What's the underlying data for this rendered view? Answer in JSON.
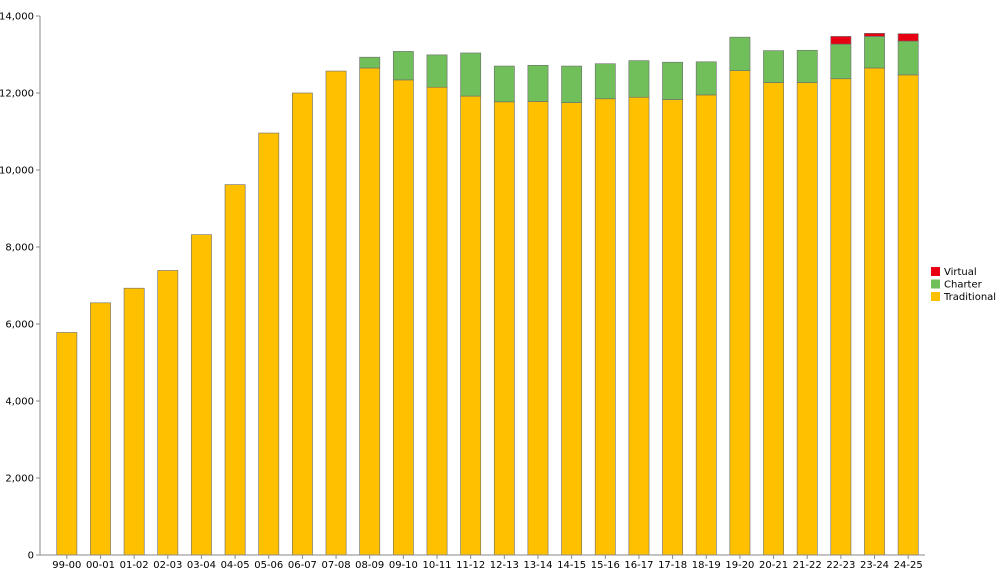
{
  "chart_data": {
    "type": "bar",
    "stacked": true,
    "categories": [
      "99-00",
      "00-01",
      "01-02",
      "02-03",
      "03-04",
      "04-05",
      "05-06",
      "06-07",
      "07-08",
      "08-09",
      "09-10",
      "10-11",
      "11-12",
      "12-13",
      "13-14",
      "14-15",
      "15-16",
      "16-17",
      "17-18",
      "18-19",
      "19-20",
      "20-21",
      "21-22",
      "22-23",
      "23-24",
      "24-25"
    ],
    "series": [
      {
        "name": "Traditional",
        "color": "#FFC000",
        "values": [
          5780,
          6550,
          6930,
          7390,
          8320,
          9620,
          10960,
          12000,
          12570,
          12650,
          12340,
          12150,
          11920,
          11770,
          11780,
          11750,
          11850,
          11890,
          11830,
          11950,
          12580,
          12270,
          12270,
          12370,
          12650,
          12470
        ]
      },
      {
        "name": "Charter",
        "color": "#70BF5B",
        "values": [
          0,
          0,
          0,
          0,
          0,
          0,
          0,
          0,
          0,
          280,
          740,
          840,
          1120,
          930,
          940,
          950,
          910,
          950,
          970,
          860,
          870,
          830,
          840,
          900,
          820,
          880
        ]
      },
      {
        "name": "Virtual",
        "color": "#E60012",
        "values": [
          0,
          0,
          0,
          0,
          0,
          0,
          0,
          0,
          0,
          0,
          0,
          0,
          0,
          0,
          0,
          0,
          0,
          0,
          0,
          0,
          0,
          0,
          0,
          200,
          80,
          190
        ]
      }
    ],
    "y_ticks": [
      "0",
      "2,000",
      "4,000",
      "6,000",
      "8,000",
      "10,000",
      "12,000",
      "14,000"
    ],
    "ylim": [
      0,
      14000
    ],
    "grid": false,
    "legend": {
      "placement": "right",
      "entries": [
        "Virtual",
        "Charter",
        "Traditional"
      ]
    }
  }
}
